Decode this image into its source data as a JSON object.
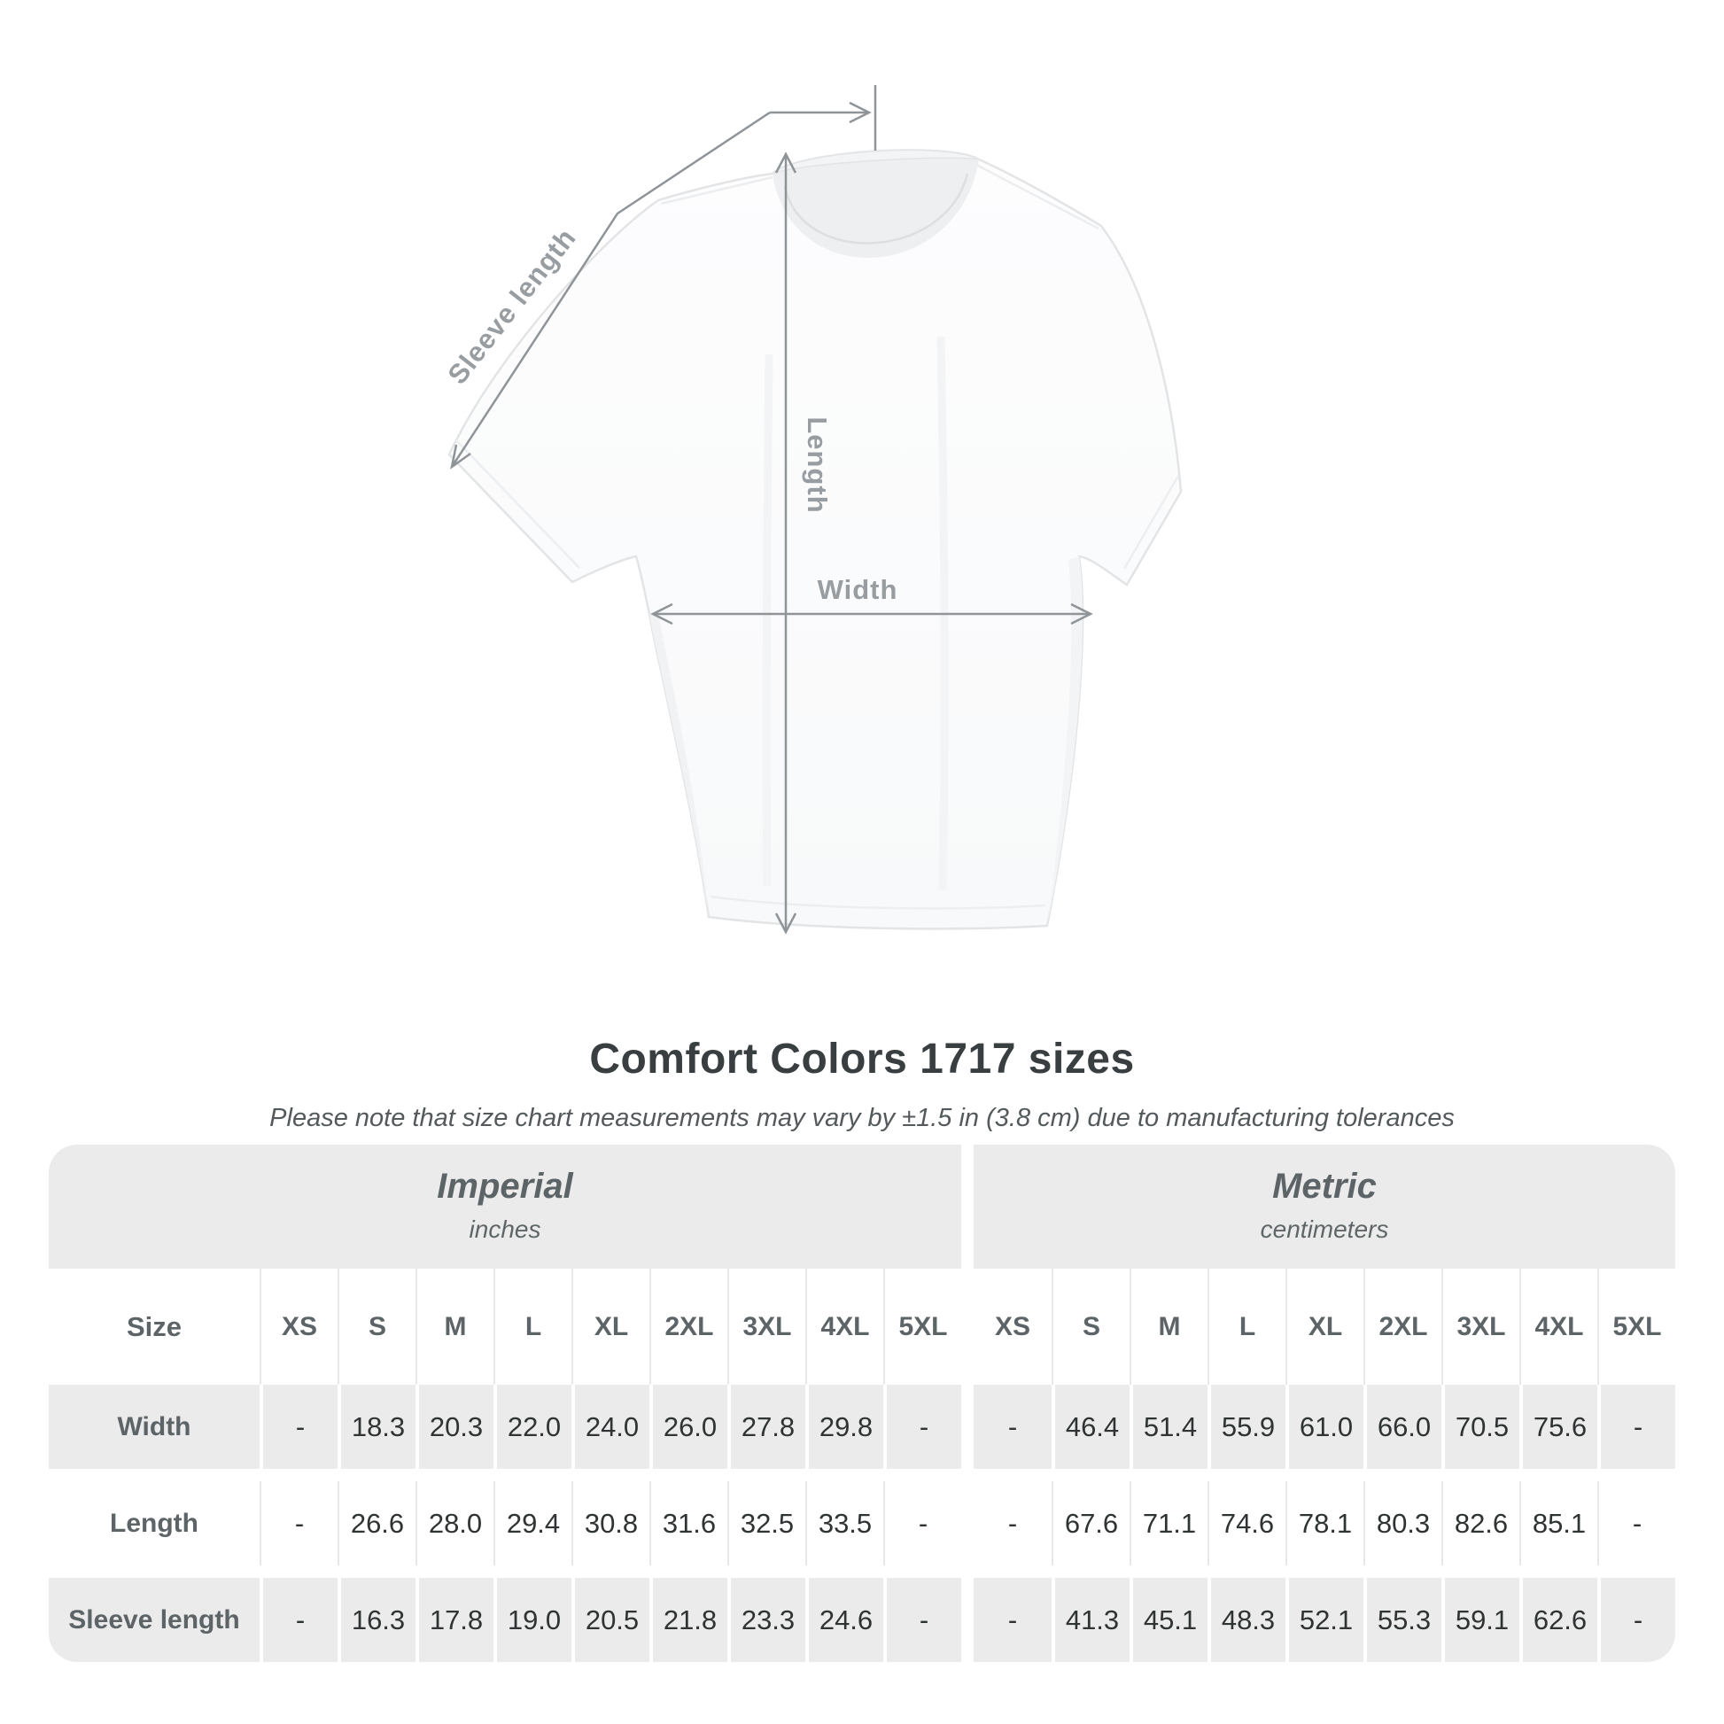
{
  "diagram": {
    "sleeve_length_label": "Sleeve length",
    "length_label": "Length",
    "width_label": "Width"
  },
  "title": "Comfort Colors 1717 sizes",
  "note": "Please note that size chart measurements may vary by ±1.5 in (3.8 cm) due to manufacturing tolerances",
  "table": {
    "unit_groups": [
      {
        "name": "Imperial",
        "unit": "inches"
      },
      {
        "name": "Metric",
        "unit": "centimeters"
      }
    ],
    "size_column_header": "Size",
    "sizes": [
      "XS",
      "S",
      "M",
      "L",
      "XL",
      "2XL",
      "3XL",
      "4XL",
      "5XL"
    ],
    "measurements": [
      {
        "label": "Width",
        "imperial": [
          "-",
          "18.3",
          "20.3",
          "22.0",
          "24.0",
          "26.0",
          "27.8",
          "29.8",
          "-"
        ],
        "metric": [
          "-",
          "46.4",
          "51.4",
          "55.9",
          "61.0",
          "66.0",
          "70.5",
          "75.6",
          "-"
        ]
      },
      {
        "label": "Length",
        "imperial": [
          "-",
          "26.6",
          "28.0",
          "29.4",
          "30.8",
          "31.6",
          "32.5",
          "33.5",
          "-"
        ],
        "metric": [
          "-",
          "67.6",
          "71.1",
          "74.6",
          "78.1",
          "80.3",
          "82.6",
          "85.1",
          "-"
        ]
      },
      {
        "label": "Sleeve length",
        "imperial": [
          "-",
          "16.3",
          "17.8",
          "19.0",
          "20.5",
          "21.8",
          "23.3",
          "24.6",
          "-"
        ],
        "metric": [
          "-",
          "41.3",
          "45.1",
          "48.3",
          "52.1",
          "55.3",
          "59.1",
          "62.6",
          "-"
        ]
      }
    ]
  },
  "colors": {
    "table_band_bg": "#ebebeb",
    "row_stripe_bg": "#ebebeb",
    "heading_text": "#5d6467",
    "value_text": "#303334",
    "title_text": "#393e40",
    "note_text": "#54595b",
    "measurement_line": "#8f9498",
    "measurement_label": "#989da1"
  }
}
